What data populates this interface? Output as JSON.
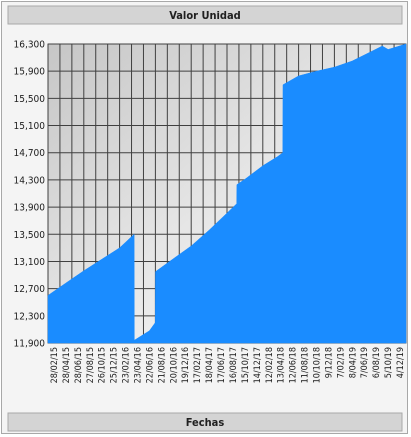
{
  "chart_data": {
    "type": "area",
    "title": "Valor Unidad",
    "xlabel": "Fechas",
    "ylabel": "",
    "ylim": [
      11900,
      16300
    ],
    "ytick_labels": [
      "11,900",
      "12,300",
      "12,700",
      "13,100",
      "13,500",
      "13,900",
      "14,300",
      "14,700",
      "15,100",
      "15,500",
      "15,900",
      "16,300"
    ],
    "ytick_values": [
      11900,
      12300,
      12700,
      13100,
      13500,
      13900,
      14300,
      14700,
      15100,
      15500,
      15900,
      16300
    ],
    "xtick_labels": [
      "28/02/15",
      "28/04/15",
      "28/06/15",
      "27/08/15",
      "26/10/15",
      "25/12/15",
      "23/02/16",
      "23/04/16",
      "22/06/16",
      "21/08/16",
      "20/10/16",
      "19/12/16",
      "17/02/17",
      "18/04/17",
      "17/06/17",
      "16/08/17",
      "15/10/17",
      "14/12/17",
      "12/02/18",
      "13/04/18",
      "12/06/18",
      "11/08/18",
      "10/10/18",
      "9/12/18",
      "7/02/19",
      "8/04/19",
      "7/06/19",
      "6/08/19",
      "5/10/19",
      "4/12/19"
    ],
    "grid": true,
    "fill_color": "#1a8cff",
    "series": [
      {
        "x": [
          "2015-01-01",
          "2015-04-01",
          "2015-07-01",
          "2015-10-01",
          "2016-01-01",
          "2016-03-15",
          "2016-03-16",
          "2016-06-01",
          "2016-07-01",
          "2016-07-02",
          "2016-10-01",
          "2017-01-01",
          "2017-04-01",
          "2017-07-01",
          "2017-08-20",
          "2017-08-21",
          "2017-10-01",
          "2018-01-01",
          "2018-03-15",
          "2018-04-12",
          "2018-04-13",
          "2018-07-01",
          "2018-10-01",
          "2019-01-01",
          "2019-04-01",
          "2019-07-01",
          "2019-09-01",
          "2019-10-01",
          "2019-12-31"
        ],
        "y": [
          12600,
          12780,
          12960,
          13130,
          13300,
          13500,
          11940,
          12080,
          12200,
          12950,
          13140,
          13330,
          13560,
          13810,
          13950,
          14230,
          14310,
          14510,
          14640,
          14700,
          15700,
          15830,
          15900,
          15960,
          16050,
          16180,
          16270,
          16220,
          16300
        ]
      }
    ]
  }
}
